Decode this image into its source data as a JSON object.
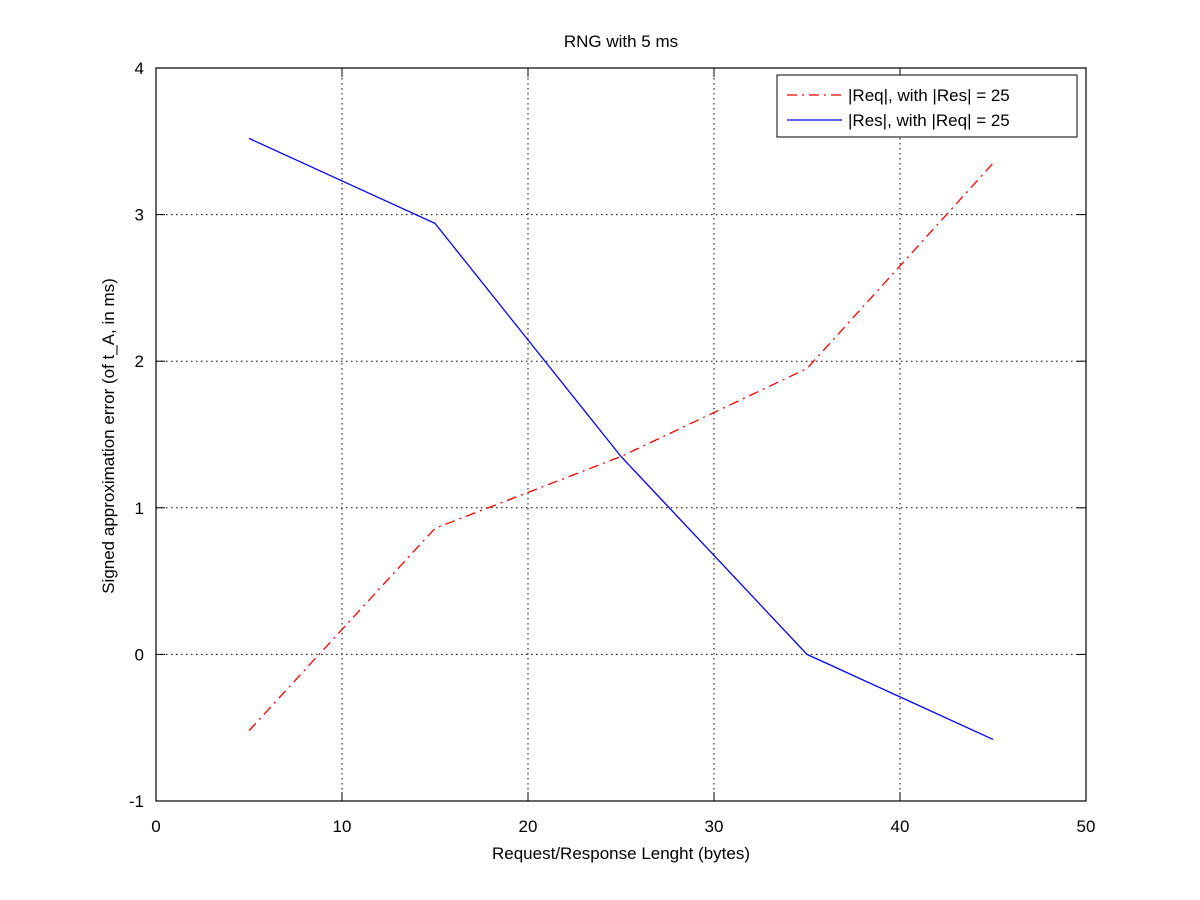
{
  "chart_data": {
    "type": "line",
    "title": "RNG with 5 ms",
    "xlabel": "Request/Response Lenght (bytes)",
    "ylabel": "Signed approximation error (of t_A, in ms)",
    "xlim": [
      0,
      50
    ],
    "ylim": [
      -1,
      4
    ],
    "xticks": [
      0,
      10,
      20,
      30,
      40,
      50
    ],
    "yticks": [
      -1,
      0,
      1,
      2,
      3,
      4
    ],
    "xtick_labels": [
      "0",
      "10",
      "20",
      "30",
      "40",
      "50"
    ],
    "ytick_labels": [
      "-1",
      "0",
      "1",
      "2",
      "3",
      "4"
    ],
    "grid": true,
    "legend_position": "top-right",
    "series": [
      {
        "name": "|Req|, with |Res| = 25",
        "color": "#ff0000",
        "line_style": "dash-dot",
        "x": [
          5,
          15,
          25,
          35,
          45
        ],
        "y": [
          -0.52,
          0.86,
          1.35,
          1.95,
          3.35
        ]
      },
      {
        "name": "|Res|, with |Req| = 25",
        "color": "#0000ff",
        "line_style": "solid",
        "x": [
          5,
          15,
          25,
          35,
          45
        ],
        "y": [
          3.52,
          2.94,
          1.35,
          0.0,
          -0.58
        ]
      }
    ]
  }
}
